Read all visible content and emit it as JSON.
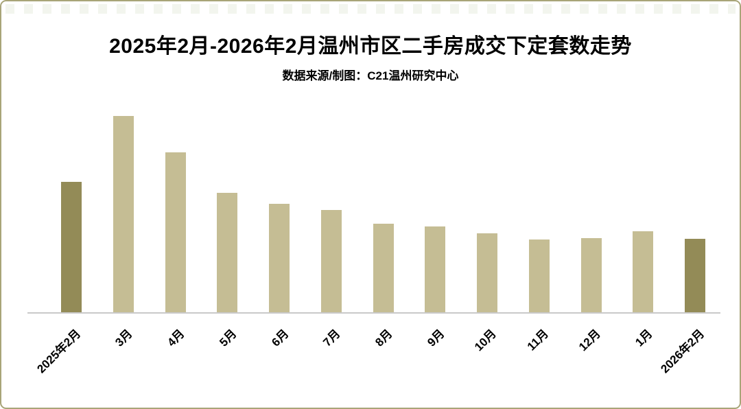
{
  "page": {
    "background_color": "#FFFFFF",
    "border_color": "#A8A578"
  },
  "header": {
    "title": "2025年2月-2026年2月温州市区二手房成交下定套数走势",
    "subtitle": "数据来源/制图：C21温州研究中心"
  },
  "chart_data": {
    "type": "bar",
    "title": "2025年2月-2026年2月温州市区二手房成交下定套数走势",
    "subtitle": "数据来源/制图：C21温州研究中心",
    "categories": [
      "2025年2月",
      "3月",
      "4月",
      "5月",
      "6月",
      "7月",
      "8月",
      "9月",
      "10月",
      "11月",
      "12月",
      "1月",
      "2026年2月"
    ],
    "values": [
      66.6,
      100,
      81.5,
      61.0,
      55.4,
      52.3,
      45.3,
      43.9,
      40.4,
      37.3,
      38.0,
      41.5,
      37.6
    ],
    "value_unit": "relative (% of tallest bar; no numeric value labels or y-axis shown in chart)",
    "ylim": [
      0,
      105
    ],
    "xlabel": "",
    "ylabel": "",
    "grid": false,
    "legend": "none",
    "x_tick_rotation_deg": 45,
    "highlight_indices": [
      0,
      12
    ],
    "bar_color": "#C5BD94",
    "highlight_color": "#938B57",
    "axis_line_color": "#C9C9C9",
    "text_color": "#000000"
  }
}
